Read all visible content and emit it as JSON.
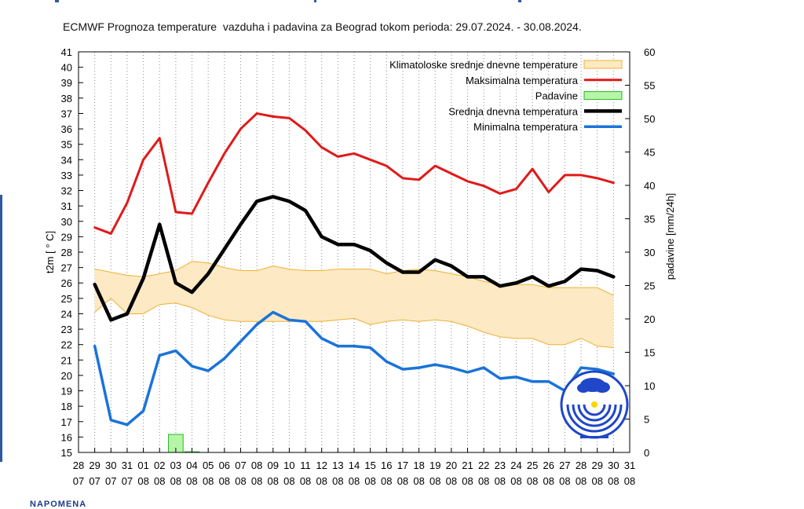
{
  "title": "ECMWF Prognoza temperature  vazduha i padavina za Beograd tokom perioda: 29.07.2024. - 30.08.2024.",
  "footer_text": "NAPOMENA",
  "chart_data": {
    "type": "line",
    "title": "ECMWF Prognoza temperature  vazduha i padavina za Beograd tokom perioda: 29.07.2024. - 30.08.2024.",
    "xlabel": "",
    "ylabel": "t2m [ ° C]",
    "y2label": "padavine [mm/24h]",
    "ylim": [
      15,
      41
    ],
    "y2lim": [
      0,
      60
    ],
    "grid": "vertical dotted",
    "legend_position": "top-right",
    "x_ticks": [
      {
        "day": "28",
        "month": "07"
      },
      {
        "day": "29",
        "month": "07"
      },
      {
        "day": "30",
        "month": "07"
      },
      {
        "day": "31",
        "month": "07"
      },
      {
        "day": "01",
        "month": "08"
      },
      {
        "day": "02",
        "month": "08"
      },
      {
        "day": "03",
        "month": "08"
      },
      {
        "day": "04",
        "month": "08"
      },
      {
        "day": "05",
        "month": "08"
      },
      {
        "day": "06",
        "month": "08"
      },
      {
        "day": "07",
        "month": "08"
      },
      {
        "day": "08",
        "month": "08"
      },
      {
        "day": "09",
        "month": "08"
      },
      {
        "day": "10",
        "month": "08"
      },
      {
        "day": "11",
        "month": "08"
      },
      {
        "day": "12",
        "month": "08"
      },
      {
        "day": "13",
        "month": "08"
      },
      {
        "day": "14",
        "month": "08"
      },
      {
        "day": "15",
        "month": "08"
      },
      {
        "day": "16",
        "month": "08"
      },
      {
        "day": "17",
        "month": "08"
      },
      {
        "day": "18",
        "month": "08"
      },
      {
        "day": "19",
        "month": "08"
      },
      {
        "day": "20",
        "month": "08"
      },
      {
        "day": "21",
        "month": "08"
      },
      {
        "day": "22",
        "month": "08"
      },
      {
        "day": "23",
        "month": "08"
      },
      {
        "day": "24",
        "month": "08"
      },
      {
        "day": "25",
        "month": "08"
      },
      {
        "day": "26",
        "month": "08"
      },
      {
        "day": "27",
        "month": "08"
      },
      {
        "day": "28",
        "month": "08"
      },
      {
        "day": "29",
        "month": "08"
      },
      {
        "day": "30",
        "month": "08"
      },
      {
        "day": "31",
        "month": "08"
      }
    ],
    "y_ticks": [
      15,
      16,
      17,
      18,
      19,
      20,
      21,
      22,
      23,
      24,
      25,
      26,
      27,
      28,
      29,
      30,
      31,
      32,
      33,
      34,
      35,
      36,
      37,
      38,
      39,
      40,
      41
    ],
    "y2_ticks": [
      0,
      5,
      10,
      15,
      20,
      25,
      30,
      35,
      40,
      45,
      50,
      55,
      60
    ],
    "climatology_band": {
      "name": "Klimatoloske srednje dnevne temperature",
      "color": "#fde9c4",
      "edge_color": "#f0b030",
      "x": [
        "29.07",
        "30.07",
        "31.07",
        "01.08",
        "02.08",
        "03.08",
        "04.08",
        "05.08",
        "06.08",
        "07.08",
        "08.08",
        "09.08",
        "10.08",
        "11.08",
        "12.08",
        "13.08",
        "14.08",
        "15.08",
        "16.08",
        "17.08",
        "18.08",
        "19.08",
        "20.08",
        "21.08",
        "22.08",
        "23.08",
        "24.08",
        "25.08",
        "26.08",
        "27.08",
        "28.08",
        "29.08",
        "30.08"
      ],
      "upper": [
        26.9,
        26.7,
        26.5,
        26.4,
        26.6,
        26.8,
        27.4,
        27.3,
        27.0,
        26.8,
        26.8,
        27.1,
        26.9,
        26.8,
        26.8,
        26.9,
        26.9,
        26.9,
        26.6,
        26.8,
        26.9,
        26.8,
        26.6,
        26.4,
        26.1,
        25.9,
        25.9,
        25.9,
        25.7,
        25.7,
        25.7,
        25.7,
        25.2
      ],
      "lower": [
        24.1,
        25.0,
        24.0,
        24.0,
        24.6,
        24.7,
        24.4,
        23.9,
        23.6,
        23.5,
        23.5,
        23.5,
        23.5,
        23.5,
        23.5,
        23.6,
        23.7,
        23.3,
        23.5,
        23.6,
        23.5,
        23.6,
        23.5,
        23.2,
        22.8,
        22.5,
        22.4,
        22.4,
        22.0,
        22.0,
        22.4,
        21.9,
        21.8
      ]
    },
    "series": [
      {
        "name": "Maksimalna temperatura",
        "color": "#e01a1a",
        "axis": "left",
        "x": [
          "29.07",
          "30.07",
          "31.07",
          "01.08",
          "02.08",
          "03.08",
          "04.08",
          "05.08",
          "06.08",
          "07.08",
          "08.08",
          "09.08",
          "10.08",
          "11.08",
          "12.08",
          "13.08",
          "14.08",
          "15.08",
          "16.08",
          "17.08",
          "18.08",
          "19.08",
          "20.08",
          "21.08",
          "22.08",
          "23.08",
          "24.08",
          "25.08",
          "26.08",
          "27.08",
          "28.08",
          "29.08",
          "30.08"
        ],
        "values": [
          29.6,
          29.2,
          31.2,
          34.0,
          35.4,
          30.6,
          30.5,
          32.5,
          34.4,
          36.0,
          37.0,
          36.8,
          36.7,
          35.9,
          34.8,
          34.2,
          34.4,
          34.0,
          33.6,
          32.8,
          32.7,
          33.6,
          33.1,
          32.6,
          32.3,
          31.8,
          32.1,
          33.4,
          31.9,
          33.0,
          33.0,
          32.8,
          32.5
        ]
      },
      {
        "name": "Srednja dnevna temperatura",
        "color": "#000000",
        "axis": "left",
        "x": [
          "29.07",
          "30.07",
          "31.07",
          "01.08",
          "02.08",
          "03.08",
          "04.08",
          "05.08",
          "06.08",
          "07.08",
          "08.08",
          "09.08",
          "10.08",
          "11.08",
          "12.08",
          "13.08",
          "14.08",
          "15.08",
          "16.08",
          "17.08",
          "18.08",
          "19.08",
          "20.08",
          "21.08",
          "22.08",
          "23.08",
          "24.08",
          "25.08",
          "26.08",
          "27.08",
          "28.08",
          "29.08",
          "30.08"
        ],
        "values": [
          25.9,
          23.6,
          24.0,
          26.3,
          29.8,
          26.0,
          25.4,
          26.6,
          28.2,
          29.8,
          31.3,
          31.6,
          31.3,
          30.7,
          29.0,
          28.5,
          28.5,
          28.1,
          27.3,
          26.7,
          26.7,
          27.5,
          27.1,
          26.4,
          26.4,
          25.8,
          26.0,
          26.4,
          25.8,
          26.1,
          26.9,
          26.8,
          26.4
        ]
      },
      {
        "name": "Minimalna temperatura",
        "color": "#1a73d9",
        "axis": "left",
        "x": [
          "29.07",
          "30.07",
          "31.07",
          "01.08",
          "02.08",
          "03.08",
          "04.08",
          "05.08",
          "06.08",
          "07.08",
          "08.08",
          "09.08",
          "10.08",
          "11.08",
          "12.08",
          "13.08",
          "14.08",
          "15.08",
          "16.08",
          "17.08",
          "18.08",
          "19.08",
          "20.08",
          "21.08",
          "22.08",
          "23.08",
          "24.08",
          "25.08",
          "26.08",
          "27.08",
          "28.08",
          "29.08",
          "30.08"
        ],
        "values": [
          21.9,
          17.1,
          16.8,
          17.7,
          21.3,
          21.6,
          20.6,
          20.3,
          21.1,
          22.2,
          23.3,
          24.1,
          23.6,
          23.5,
          22.4,
          21.9,
          21.9,
          21.8,
          20.9,
          20.4,
          20.5,
          20.7,
          20.5,
          20.2,
          20.5,
          19.8,
          19.9,
          19.6,
          19.6,
          19.0,
          20.5,
          20.4,
          20.1
        ]
      },
      {
        "name": "Padavine",
        "color": "#b6f5a8",
        "edge_color": "#22b822",
        "type": "bar",
        "axis": "right",
        "x": [
          "29.07",
          "30.07",
          "31.07",
          "01.08",
          "02.08",
          "03.08",
          "04.08",
          "05.08",
          "06.08",
          "07.08",
          "08.08",
          "09.08",
          "10.08",
          "11.08",
          "12.08",
          "13.08",
          "14.08",
          "15.08",
          "16.08",
          "17.08",
          "18.08",
          "19.08",
          "20.08",
          "21.08",
          "22.08",
          "23.08",
          "24.08",
          "25.08",
          "26.08",
          "27.08",
          "28.08",
          "29.08",
          "30.08"
        ],
        "values": [
          0,
          0,
          0,
          0,
          0,
          2.7,
          0.1,
          0,
          0,
          0,
          0,
          0,
          0,
          0,
          0,
          0,
          0,
          0,
          0,
          0,
          0,
          0,
          0,
          0,
          0,
          0,
          0,
          0,
          0,
          0,
          0,
          0,
          0
        ]
      }
    ],
    "legend_order": [
      "Klimatoloske srednje dnevne temperature",
      "Maksimalna temperatura",
      "Padavine",
      "Srednja dnevna temperatura",
      "Minimalna temperatura"
    ]
  }
}
